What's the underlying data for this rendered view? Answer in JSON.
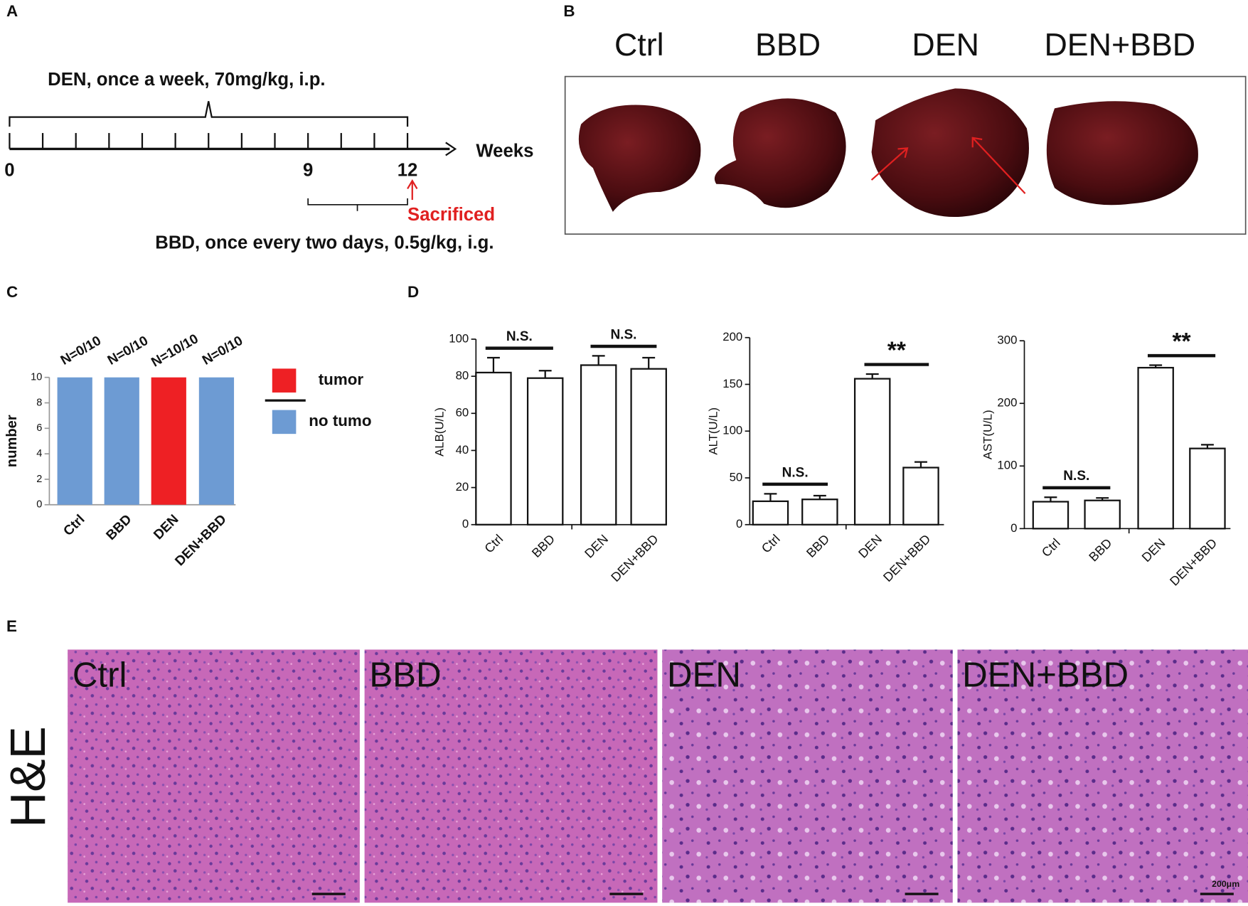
{
  "panel_labels": [
    "A",
    "B",
    "C",
    "D",
    "E"
  ],
  "panel_a": {
    "dose_den": "DEN, once a week, 70mg/kg, i.p.",
    "axis_label": "Weeks",
    "week_labels": [
      0,
      9,
      12
    ],
    "sacrificed": "Sacrificed",
    "dose_bbd": "BBD, once every two days, 0.5g/kg, i.g."
  },
  "panel_b": {
    "labels": [
      "Ctrl",
      "BBD",
      "DEN",
      "DEN+BBD"
    ]
  },
  "chart_data": [
    {
      "type": "stacked_bar",
      "categories": [
        "Ctrl",
        "BBD",
        "DEN",
        "DEN+BBD"
      ],
      "series": [
        {
          "name": "tumor",
          "color": "#ee2024",
          "values": [
            0,
            0,
            10,
            0
          ]
        },
        {
          "name": "no tumo",
          "color": "#6d9bd3",
          "values": [
            10,
            10,
            0,
            10
          ]
        }
      ],
      "bar_labels": [
        "N=0/10",
        "N=0/10",
        "N=10/10",
        "N=0/10"
      ],
      "ylabel": "number",
      "ylim": [
        0,
        10
      ],
      "yticks": [
        0,
        2,
        4,
        6,
        8,
        10
      ]
    },
    {
      "type": "error_bar",
      "categories": [
        "Ctrl",
        "BBD",
        "DEN",
        "DEN+BBD"
      ],
      "values": [
        82,
        79,
        86,
        84
      ],
      "errors": [
        8,
        4,
        5,
        6
      ],
      "color": "#ffffff",
      "ylabel": "ALB(U/L)",
      "ylim": [
        0,
        100
      ],
      "yticks": [
        0,
        20,
        40,
        60,
        80,
        100
      ],
      "annotations": [
        "N.S.",
        "N.S."
      ]
    },
    {
      "type": "error_bar",
      "categories": [
        "Ctrl",
        "BBD",
        "DEN",
        "DEN+BBD"
      ],
      "values": [
        25,
        27,
        156,
        61
      ],
      "errors": [
        8,
        4,
        5,
        6
      ],
      "color": "#ffffff",
      "ylabel": "ALT(U/L)",
      "ylim": [
        0,
        200
      ],
      "yticks": [
        0,
        50,
        100,
        150,
        200
      ],
      "annotations": [
        "N.S.",
        "**"
      ]
    },
    {
      "type": "error_bar",
      "categories": [
        "Ctrl",
        "BBD",
        "DEN",
        "DEN+BBD"
      ],
      "values": [
        43,
        45,
        257,
        128
      ],
      "errors": [
        7,
        4,
        4,
        6
      ],
      "color": "#ffffff",
      "ylabel": "AST(U/L)",
      "ylim": [
        0,
        300
      ],
      "yticks": [
        0,
        100,
        200,
        300
      ],
      "annotations": [
        "N.S.",
        "**"
      ]
    }
  ],
  "panel_e": {
    "labels": [
      "Ctrl",
      "BBD",
      "DEN",
      "DEN+BBD"
    ],
    "stain": "H&E",
    "scale": "200μm"
  }
}
